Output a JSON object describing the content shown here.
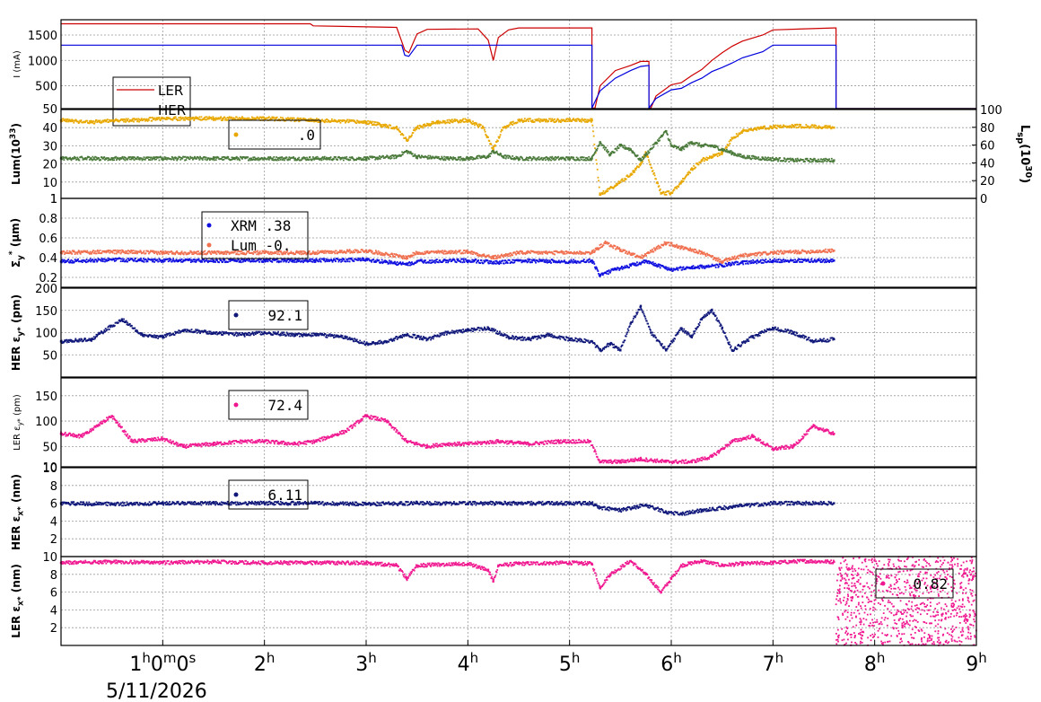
{
  "chart_data": {
    "type": "line",
    "date_label": "5/11/2026",
    "x_ticks": [
      {
        "hour": 1,
        "label": "1",
        "sup": "h",
        "label2": "0",
        "sup2": "m",
        "label3": "0",
        "sup3": "s"
      },
      {
        "hour": 2,
        "label": "2",
        "sup": "h"
      },
      {
        "hour": 3,
        "label": "3",
        "sup": "h"
      },
      {
        "hour": 4,
        "label": "4",
        "sup": "h"
      },
      {
        "hour": 5,
        "label": "5",
        "sup": "h"
      },
      {
        "hour": 6,
        "label": "6",
        "sup": "h"
      },
      {
        "hour": 7,
        "label": "7",
        "sup": "h"
      },
      {
        "hour": 8,
        "label": "8",
        "sup": "h"
      },
      {
        "hour": 9,
        "label": "9",
        "sup": "h"
      }
    ],
    "xlim": [
      0,
      9
    ],
    "colors": {
      "ler": "#cc0000",
      "her": "#0000dd",
      "lum_gold": "#e8a800",
      "lum_green": "#4a7a3a",
      "xrm": "#1010e0",
      "lum_sigma": "#f07050",
      "her_ey": "#10187a",
      "ler_ey": "#f01890",
      "her_ex": "#10187a",
      "ler_ex": "#f01890"
    },
    "panels": [
      {
        "id": "current",
        "ylabel": "I (mA)",
        "ylim": [
          50,
          1800
        ],
        "yticks": [
          "50",
          "500",
          "1000",
          "1500"
        ],
        "ytick_values": [
          50,
          500,
          1000,
          1500
        ],
        "legend": [
          {
            "name": "LER",
            "color": "#cc0000"
          },
          {
            "name": "HER",
            "color": "#0000dd"
          }
        ],
        "series": [
          {
            "name": "LER",
            "style": "line",
            "color": "#cc0000",
            "x": [
              0.0,
              2.45,
              2.48,
              3.3,
              3.38,
              3.42,
              3.5,
              3.6,
              4.1,
              4.2,
              4.25,
              4.3,
              4.4,
              4.5,
              5.22,
              5.22,
              5.25,
              5.3,
              5.45,
              5.6,
              5.7,
              5.78,
              5.78,
              5.8,
              5.8,
              5.85,
              6.0,
              6.1,
              6.2,
              6.3,
              6.4,
              6.5,
              6.6,
              6.7,
              6.9,
              7.0,
              7.6,
              7.62,
              7.62,
              9.0
            ],
            "y": [
              1720,
              1720,
              1680,
              1650,
              1200,
              1150,
              1520,
              1610,
              1620,
              1400,
              1000,
              1450,
              1600,
              1640,
              1640,
              60,
              60,
              500,
              800,
              900,
              980,
              980,
              60,
              60,
              60,
              300,
              520,
              560,
              700,
              820,
              1000,
              1150,
              1280,
              1380,
              1500,
              1600,
              1640,
              1640,
              50,
              50
            ]
          },
          {
            "name": "HER",
            "style": "line",
            "color": "#0000dd",
            "x": [
              0.0,
              2.45,
              2.5,
              3.35,
              3.38,
              3.42,
              3.5,
              3.6,
              5.22,
              5.22,
              5.3,
              5.45,
              5.6,
              5.7,
              5.78,
              5.78,
              5.85,
              6.0,
              6.1,
              6.2,
              6.3,
              6.4,
              6.5,
              6.6,
              6.7,
              6.9,
              7.0,
              7.62,
              7.62,
              9.0
            ],
            "y": [
              1300,
              1300,
              1300,
              1300,
              1100,
              1080,
              1300,
              1300,
              1300,
              60,
              400,
              650,
              800,
              880,
              900,
              60,
              250,
              420,
              450,
              560,
              650,
              780,
              860,
              950,
              1050,
              1170,
              1300,
              1300,
              50,
              50
            ]
          }
        ]
      },
      {
        "id": "luminosity",
        "ylabel": "Lum(10",
        "ylabel_sup": "33",
        "ylabel_end": ")",
        "ylim": [
          1,
          50
        ],
        "yticks": [
          "1",
          "10",
          "20",
          "30",
          "40"
        ],
        "ytick_values": [
          1,
          10,
          20,
          30,
          40
        ],
        "ylabel_right": "L",
        "ylabel_right_sub": "sp",
        "ylabel_right_mid": "(10",
        "ylabel_right_sup": "30",
        "ylabel_right_end": ")",
        "ylim_right": [
          0,
          100
        ],
        "yticks_right": [
          "0",
          "20",
          "40",
          "60",
          "80",
          "100"
        ],
        "ytick_values_right": [
          0,
          20,
          40,
          60,
          80,
          100
        ],
        "legend_value": ".0",
        "series": [
          {
            "name": "gold",
            "style": "scatter",
            "color": "#e8a800",
            "x": [
              0.0,
              0.3,
              0.5,
              0.7,
              1.0,
              1.5,
              2.0,
              2.5,
              3.0,
              3.3,
              3.4,
              3.5,
              3.7,
              4.0,
              4.15,
              4.25,
              4.35,
              4.5,
              5.0,
              5.22,
              5.3,
              5.45,
              5.6,
              5.7,
              5.75,
              5.9,
              6.0,
              6.1,
              6.2,
              6.3,
              6.4,
              6.5,
              6.6,
              6.7,
              6.9,
              7.2,
              7.6
            ],
            "y": [
              44,
              43,
              44,
              44,
              45,
              45,
              45,
              44,
              43,
              40,
              33,
              40,
              43,
              44,
              40,
              28,
              40,
              44,
              44,
              44,
              3,
              8,
              14,
              20,
              26,
              4,
              4,
              10,
              17,
              22,
              24,
              26,
              34,
              38,
              40,
              41,
              40
            ]
          },
          {
            "name": "green",
            "style": "scatter",
            "color": "#4a7a3a",
            "x": [
              0.0,
              0.5,
              1.0,
              1.5,
              2.0,
              2.5,
              3.0,
              3.3,
              3.4,
              3.5,
              3.8,
              4.0,
              4.2,
              4.25,
              4.35,
              4.5,
              5.0,
              5.22,
              5.3,
              5.4,
              5.5,
              5.6,
              5.7,
              5.75,
              5.95,
              6.0,
              6.1,
              6.2,
              6.3,
              6.4,
              6.5,
              6.6,
              6.7,
              6.9,
              7.2,
              7.6
            ],
            "y": [
              23,
              23,
              23,
              23,
              23,
              23,
              23,
              24,
              27,
              24,
              23,
              23,
              24,
              27,
              24,
              23,
              23,
              23,
              32,
              25,
              30,
              28,
              22,
              25,
              38,
              30,
              28,
              32,
              30,
              30,
              28,
              26,
              24,
              23,
              22,
              22
            ]
          }
        ]
      },
      {
        "id": "sigma_y",
        "ylabel": "Σ",
        "ylabel_sub": "y",
        "ylabel_sup": "*",
        "ylabel_end": " (µm)",
        "ylim": [
          0.1,
          1.0
        ],
        "yticks": [
          "0.2",
          "0.4",
          "0.6",
          "0.8",
          "1"
        ],
        "ytick_values": [
          0.2,
          0.4,
          0.6,
          0.8,
          1.0
        ],
        "legend": [
          {
            "name": "XRM",
            "value": ".38",
            "color": "#1010e0"
          },
          {
            "name": "Lum",
            "value": "-0.",
            "color": "#f07050"
          }
        ],
        "series": [
          {
            "name": "XRM",
            "style": "scatter",
            "color": "#1010e0",
            "x": [
              0.0,
              0.5,
              1.0,
              1.5,
              2.0,
              2.5,
              3.0,
              3.4,
              3.5,
              4.0,
              4.3,
              4.5,
              5.0,
              5.22,
              5.3,
              5.45,
              5.6,
              5.75,
              6.0,
              6.2,
              6.5,
              6.7,
              7.0,
              7.6
            ],
            "y": [
              0.36,
              0.38,
              0.37,
              0.37,
              0.37,
              0.37,
              0.38,
              0.33,
              0.36,
              0.37,
              0.35,
              0.37,
              0.36,
              0.37,
              0.22,
              0.28,
              0.32,
              0.36,
              0.28,
              0.3,
              0.32,
              0.35,
              0.37,
              0.37
            ]
          },
          {
            "name": "Lum",
            "style": "scatter",
            "color": "#f07050",
            "x": [
              0.0,
              0.5,
              1.0,
              1.5,
              2.0,
              2.5,
              3.0,
              3.4,
              3.5,
              4.0,
              4.25,
              4.5,
              5.0,
              5.22,
              5.35,
              5.5,
              5.7,
              5.95,
              6.1,
              6.3,
              6.5,
              6.7,
              7.0,
              7.6
            ],
            "y": [
              0.45,
              0.46,
              0.45,
              0.45,
              0.45,
              0.45,
              0.47,
              0.4,
              0.45,
              0.46,
              0.4,
              0.45,
              0.45,
              0.45,
              0.55,
              0.48,
              0.4,
              0.55,
              0.5,
              0.45,
              0.36,
              0.42,
              0.45,
              0.47
            ]
          }
        ]
      },
      {
        "id": "her_ey",
        "ylabel": "HER ε",
        "ylabel_sub": "y*",
        "ylabel_end": " (pm)",
        "ylim": [
          0,
          200
        ],
        "yticks": [
          "50",
          "100",
          "150",
          "200"
        ],
        "ytick_values": [
          50,
          100,
          150,
          200
        ],
        "legend_value": "92.1",
        "series": [
          {
            "name": "HER",
            "style": "scatter",
            "color": "#10187a",
            "x": [
              0.0,
              0.3,
              0.6,
              0.8,
              1.0,
              1.2,
              1.5,
              1.8,
              2.0,
              2.3,
              2.5,
              2.8,
              3.0,
              3.2,
              3.4,
              3.6,
              3.8,
              4.0,
              4.2,
              4.4,
              4.6,
              4.8,
              5.0,
              5.22,
              5.3,
              5.4,
              5.5,
              5.6,
              5.7,
              5.8,
              5.95,
              6.1,
              6.2,
              6.3,
              6.4,
              6.5,
              6.6,
              6.8,
              7.0,
              7.2,
              7.4,
              7.6
            ],
            "y": [
              80,
              85,
              130,
              95,
              90,
              105,
              100,
              95,
              100,
              95,
              95,
              90,
              75,
              80,
              95,
              85,
              100,
              105,
              110,
              90,
              85,
              95,
              85,
              80,
              60,
              75,
              60,
              120,
              160,
              100,
              60,
              110,
              90,
              130,
              150,
              110,
              60,
              90,
              110,
              100,
              80,
              85
            ]
          }
        ]
      },
      {
        "id": "ler_ey",
        "ylabel": "LER ε",
        "ylabel_sub": "y*",
        "ylabel_end": " (pm)",
        "ylim": [
          10,
          185
        ],
        "yticks": [
          "10",
          "50",
          "100",
          "150"
        ],
        "ytick_values": [
          10,
          50,
          100,
          150
        ],
        "legend_value": "72.4",
        "series": [
          {
            "name": "LER",
            "style": "scatter",
            "color": "#f01890",
            "x": [
              0.0,
              0.2,
              0.5,
              0.7,
              1.0,
              1.2,
              1.5,
              1.8,
              2.0,
              2.3,
              2.5,
              2.8,
              3.0,
              3.2,
              3.4,
              3.6,
              3.8,
              4.0,
              4.3,
              4.6,
              4.9,
              5.2,
              5.3,
              5.5,
              5.7,
              5.95,
              6.2,
              6.4,
              6.6,
              6.8,
              7.0,
              7.2,
              7.4,
              7.6
            ],
            "y": [
              75,
              70,
              110,
              60,
              65,
              50,
              55,
              60,
              60,
              55,
              60,
              80,
              110,
              100,
              60,
              50,
              55,
              55,
              60,
              55,
              60,
              60,
              20,
              20,
              25,
              20,
              20,
              30,
              60,
              70,
              45,
              50,
              90,
              75
            ]
          }
        ]
      },
      {
        "id": "her_ex",
        "ylabel": "HER ε",
        "ylabel_sub": "x*",
        "ylabel_end": " (nm)",
        "ylim": [
          0,
          10
        ],
        "yticks": [
          "2",
          "4",
          "6",
          "8",
          "10"
        ],
        "ytick_values": [
          2,
          4,
          6,
          8,
          10
        ],
        "legend_value": "6.11",
        "series": [
          {
            "name": "HER",
            "style": "scatter",
            "color": "#10187a",
            "x": [
              0.0,
              0.5,
              1.0,
              1.5,
              2.0,
              2.5,
              3.0,
              3.5,
              4.0,
              4.5,
              5.0,
              5.22,
              5.3,
              5.5,
              5.75,
              5.95,
              6.1,
              6.3,
              6.6,
              7.0,
              7.6
            ],
            "y": [
              6.0,
              5.9,
              6.0,
              6.0,
              6.0,
              6.0,
              5.9,
              6.0,
              6.0,
              6.0,
              6.0,
              6.0,
              5.5,
              5.2,
              5.8,
              5.0,
              4.8,
              5.2,
              5.6,
              6.0,
              6.0
            ]
          }
        ]
      },
      {
        "id": "ler_ex",
        "ylabel": "LER ε",
        "ylabel_sub": "x*",
        "ylabel_end": " (nm)",
        "ylim": [
          0,
          10
        ],
        "yticks": [
          "2",
          "4",
          "6",
          "8",
          "10"
        ],
        "ytick_values": [
          2,
          4,
          6,
          8,
          10
        ],
        "legend_value": "0.82",
        "series": [
          {
            "name": "LER",
            "style": "scatter",
            "color": "#f01890",
            "x": [
              0.0,
              0.5,
              1.0,
              1.5,
              2.0,
              2.5,
              3.0,
              3.3,
              3.4,
              3.5,
              4.0,
              4.2,
              4.25,
              4.3,
              4.5,
              5.0,
              5.22,
              5.3,
              5.4,
              5.6,
              5.75,
              5.9,
              6.0,
              6.1,
              6.3,
              6.5,
              6.7,
              7.0,
              7.3,
              7.6
            ],
            "y": [
              9.3,
              9.4,
              9.3,
              9.4,
              9.3,
              9.3,
              9.3,
              9.0,
              7.5,
              9.0,
              9.2,
              8.5,
              7.2,
              9.0,
              9.2,
              9.3,
              9.2,
              6.5,
              8.0,
              9.5,
              8.0,
              6.0,
              7.5,
              9.0,
              9.5,
              9.0,
              9.2,
              9.3,
              9.5,
              9.4
            ]
          }
        ]
      }
    ]
  }
}
